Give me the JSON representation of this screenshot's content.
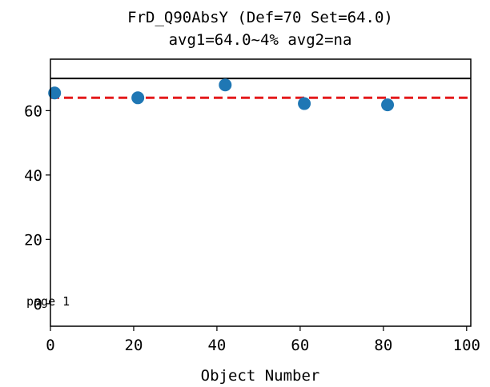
{
  "chart_data": {
    "type": "scatter",
    "title": "FrD_Q90AbsY (Def=70 Set=64.0)",
    "subtitle": "avg1=64.0~4% avg2=na",
    "xlabel": "Object Number",
    "ylabel": "",
    "xlim": [
      0,
      101
    ],
    "ylim": [
      -7,
      76
    ],
    "xticks": [
      0,
      20,
      40,
      60,
      80,
      100
    ],
    "yticks": [
      0,
      20,
      40,
      60
    ],
    "grid": false,
    "series": [
      {
        "color": "#1f77b4",
        "x": [
          1,
          21,
          42,
          61,
          81
        ],
        "y": [
          65.5,
          64.0,
          68.0,
          62.2,
          61.8
        ]
      }
    ],
    "reference_lines": [
      {
        "y": 70,
        "color": "#000000",
        "style": "solid"
      },
      {
        "y": 64,
        "color": "#e41a1c",
        "style": "dashed"
      }
    ],
    "annotations": [
      {
        "text": "page 1",
        "x": 0,
        "y": 0
      }
    ]
  }
}
